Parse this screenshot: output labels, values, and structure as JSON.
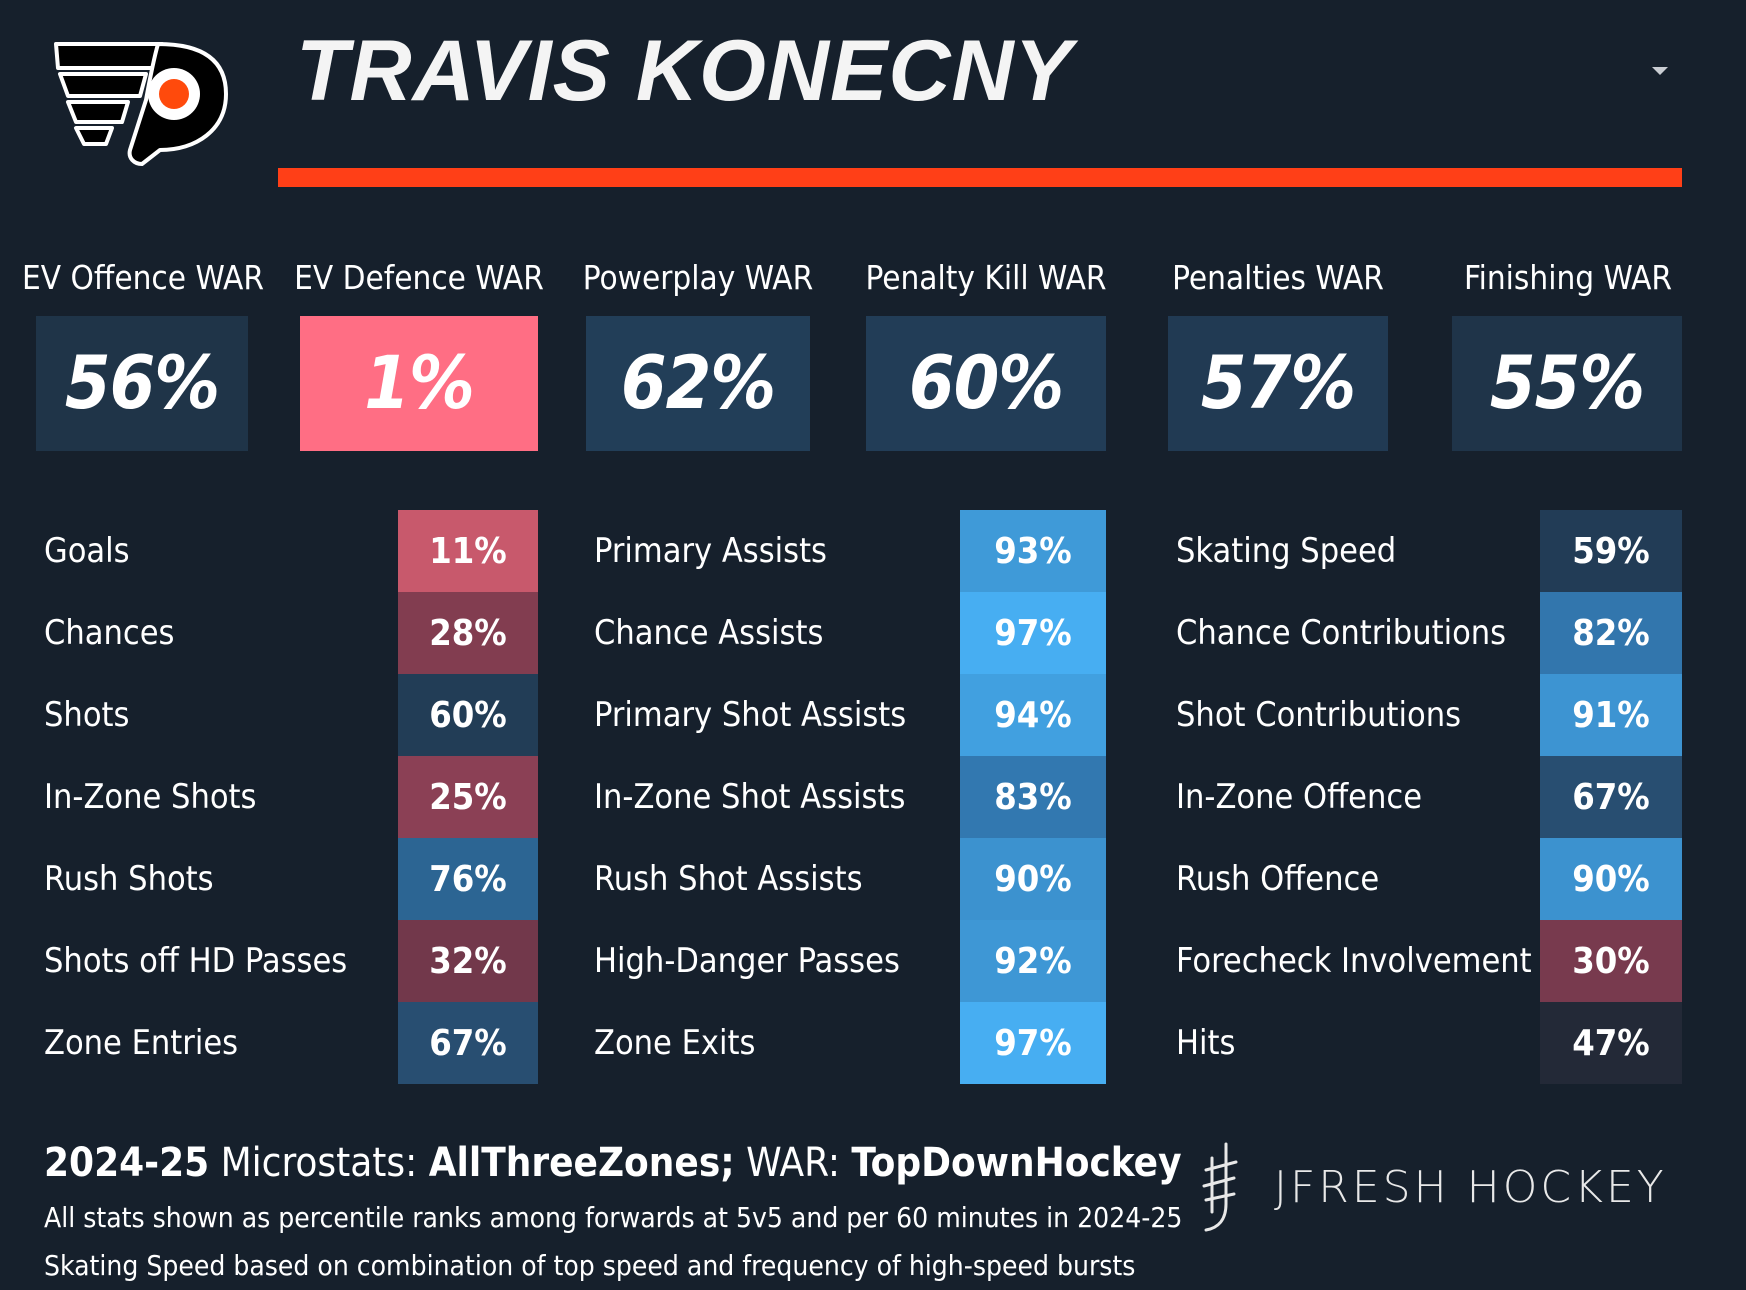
{
  "header": {
    "player_name": "TRAVIS KONECNY",
    "accent_color": "#ff3f17",
    "logo_icon": "philadelphia-flyers-logo"
  },
  "war": [
    {
      "label": "EV Offence WAR",
      "value": "56%",
      "percentile": 56,
      "color": "#1f3448"
    },
    {
      "label": "EV Defence WAR",
      "value": "1%",
      "percentile": 1,
      "color": "#ff6e84"
    },
    {
      "label": "Powerplay WAR",
      "value": "62%",
      "percentile": 62,
      "color": "#223e58"
    },
    {
      "label": "Penalty Kill WAR",
      "value": "60%",
      "percentile": 60,
      "color": "#223d57"
    },
    {
      "label": "Penalties WAR",
      "value": "57%",
      "percentile": 57,
      "color": "#213a53"
    },
    {
      "label": "Finishing WAR",
      "value": "55%",
      "percentile": 55,
      "color": "#1f3449"
    }
  ],
  "microstats": [
    [
      {
        "label": "Goals",
        "value": "11%",
        "percentile": 11,
        "color": "#c8596c"
      },
      {
        "label": "Chances",
        "value": "28%",
        "percentile": 28,
        "color": "#823d50"
      },
      {
        "label": "Shots",
        "value": "60%",
        "percentile": 60,
        "color": "#223d56"
      },
      {
        "label": "In-Zone Shots",
        "value": "25%",
        "percentile": 25,
        "color": "#8b4055"
      },
      {
        "label": "Rush Shots",
        "value": "76%",
        "percentile": 76,
        "color": "#2c6593"
      },
      {
        "label": "Shots off HD Passes",
        "value": "32%",
        "percentile": 32,
        "color": "#72384b"
      },
      {
        "label": "Zone Entries",
        "value": "67%",
        "percentile": 67,
        "color": "#284e71"
      }
    ],
    [
      {
        "label": "Primary Assists",
        "value": "93%",
        "percentile": 93,
        "color": "#3f9ad8"
      },
      {
        "label": "Chance Assists",
        "value": "97%",
        "percentile": 97,
        "color": "#47aef2"
      },
      {
        "label": "Primary Shot Assists",
        "value": "94%",
        "percentile": 94,
        "color": "#41a0e0"
      },
      {
        "label": "In-Zone Shot Assists",
        "value": "83%",
        "percentile": 83,
        "color": "#3278b0"
      },
      {
        "label": "Rush Shot Assists",
        "value": "90%",
        "percentile": 90,
        "color": "#3c92cf"
      },
      {
        "label": "High-Danger Passes",
        "value": "92%",
        "percentile": 92,
        "color": "#3e97d5"
      },
      {
        "label": "Zone Exits",
        "value": "97%",
        "percentile": 97,
        "color": "#47aef2"
      }
    ],
    [
      {
        "label": "Skating Speed",
        "value": "59%",
        "percentile": 59,
        "color": "#223c56"
      },
      {
        "label": "Chance Contributions",
        "value": "82%",
        "percentile": 82,
        "color": "#3276ad"
      },
      {
        "label": "Shot Contributions",
        "value": "91%",
        "percentile": 91,
        "color": "#3d94d2"
      },
      {
        "label": "In-Zone Offence",
        "value": "67%",
        "percentile": 67,
        "color": "#284e71"
      },
      {
        "label": "Rush Offence",
        "value": "90%",
        "percentile": 90,
        "color": "#3c92cf"
      },
      {
        "label": "Forecheck Involvement",
        "value": "30%",
        "percentile": 30,
        "color": "#783a4e"
      },
      {
        "label": "Hits",
        "value": "47%",
        "percentile": 47,
        "color": "#232937"
      }
    ]
  ],
  "footer": {
    "season": "2024-25",
    "microstats_label": "Microstats:",
    "microstats_source": "AllThreeZones;",
    "war_label": "WAR:",
    "war_source": "TopDownHockey",
    "note_1": "All stats shown as percentile ranks among forwards at 5v5 and per 60 minutes in 2024-25",
    "note_2": "Skating Speed based on combination of top speed and frequency of high-speed bursts"
  },
  "brand": {
    "name": "JFRESH HOCKEY",
    "icon": "jfresh-hockey-stick-icon"
  }
}
